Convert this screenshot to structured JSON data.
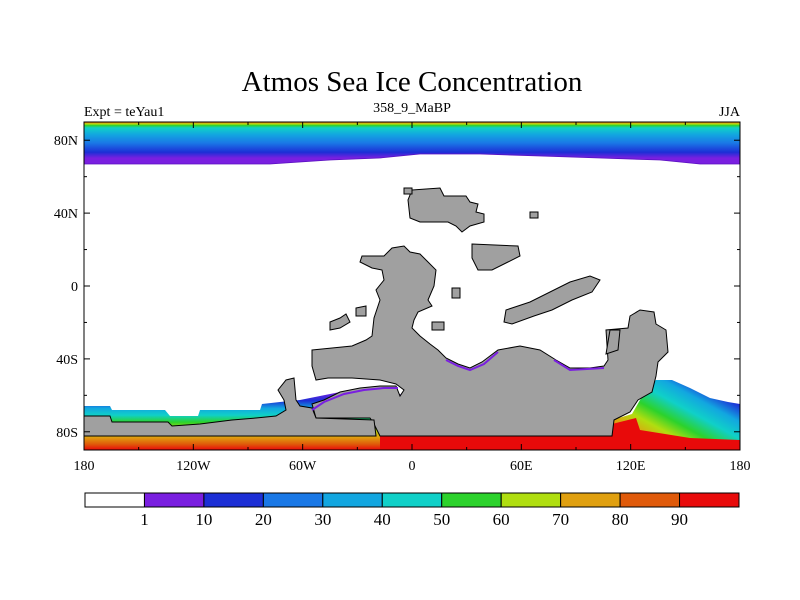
{
  "chart_data": {
    "type": "heatmap",
    "title": "Atmos Sea Ice Concentration",
    "subtitle_left": "Expt = teYau1",
    "subtitle_center": "358_9_MaBP",
    "subtitle_right": "JJA",
    "projection": "cylindrical equidistant",
    "xlim": [
      -180,
      180
    ],
    "ylim": [
      -90,
      90
    ],
    "x_ticks": [
      {
        "value": -180,
        "label": "180"
      },
      {
        "value": -120,
        "label": "120W"
      },
      {
        "value": -60,
        "label": "60W"
      },
      {
        "value": 0,
        "label": "0"
      },
      {
        "value": 60,
        "label": "60E"
      },
      {
        "value": 120,
        "label": "120E"
      },
      {
        "value": 180,
        "label": "180"
      }
    ],
    "y_ticks": [
      {
        "value": 80,
        "label": "80N"
      },
      {
        "value": 40,
        "label": "40N"
      },
      {
        "value": 0,
        "label": "0"
      },
      {
        "value": -40,
        "label": "40S"
      },
      {
        "value": -80,
        "label": "80S"
      }
    ],
    "land_color": "#a0a0a0",
    "colorbar": {
      "levels": [
        "1",
        "10",
        "20",
        "30",
        "40",
        "50",
        "60",
        "70",
        "80",
        "90"
      ],
      "colors": [
        "#ffffff",
        "#7a1fe0",
        "#1c2fd6",
        "#1a78e6",
        "#12a6e0",
        "#10d0c8",
        "#2cd22c",
        "#b0de10",
        "#e0a010",
        "#e05a0a",
        "#e80a0a"
      ]
    },
    "arctic_band_top_to_bottom": [
      {
        "lat": 90,
        "value": 90
      },
      {
        "lat": 89,
        "value": 70
      },
      {
        "lat": 88,
        "value": 60
      },
      {
        "lat": 87,
        "value": 50
      },
      {
        "lat": 85,
        "value": 40
      },
      {
        "lat": 82,
        "value": 30
      },
      {
        "lat": 79,
        "value": 20
      },
      {
        "lat": 76,
        "value": 10
      },
      {
        "lat": 72,
        "value": 1
      }
    ],
    "antarctic_pacific_sector": [
      {
        "lat": -71,
        "value": 1
      },
      {
        "lat": -73,
        "value": 20
      },
      {
        "lat": -76,
        "value": 40
      },
      {
        "lat": -78,
        "value": 60
      },
      {
        "lat": -81,
        "value": 70
      },
      {
        "lat": -84,
        "value": 80
      },
      {
        "lat": -87,
        "value": 90
      }
    ],
    "antarctic_indian_sector_max": 90
  }
}
